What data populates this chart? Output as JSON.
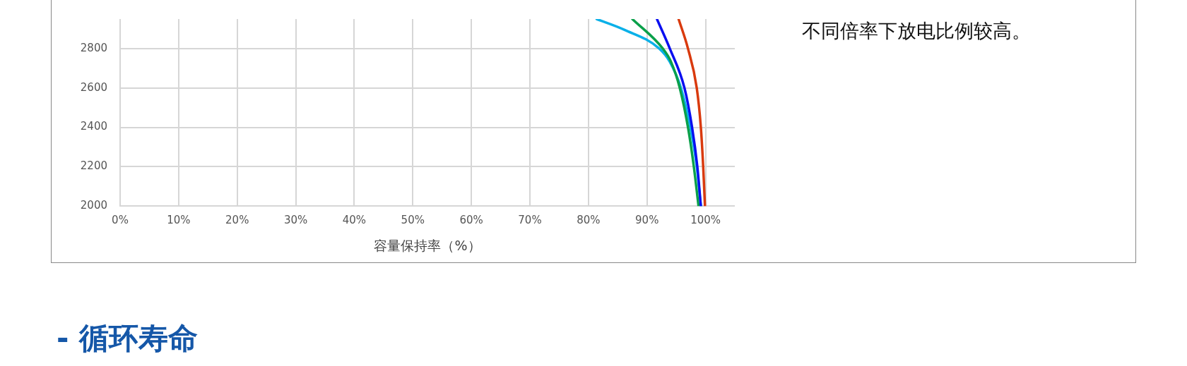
{
  "chart_data": {
    "type": "line",
    "xlabel": "容量保持率（%）",
    "xlim": [
      0,
      105
    ],
    "ylim": [
      2000,
      2950
    ],
    "xticks": [
      {
        "value": 0,
        "label": "0%"
      },
      {
        "value": 10,
        "label": "10%"
      },
      {
        "value": 20,
        "label": "20%"
      },
      {
        "value": 30,
        "label": "30%"
      },
      {
        "value": 40,
        "label": "40%"
      },
      {
        "value": 50,
        "label": "50%"
      },
      {
        "value": 60,
        "label": "60%"
      },
      {
        "value": 70,
        "label": "70%"
      },
      {
        "value": 80,
        "label": "80%"
      },
      {
        "value": 90,
        "label": "90%"
      },
      {
        "value": 100,
        "label": "100%"
      }
    ],
    "yticks": [
      2000,
      2200,
      2400,
      2600,
      2800
    ],
    "series": [
      {
        "color": "#d93a0e",
        "x": [
          95.4,
          97.0,
          98.5,
          99.2,
          99.6,
          99.9
        ],
        "values": [
          2950,
          2800,
          2600,
          2400,
          2200,
          2000
        ]
      },
      {
        "color": "#0a0ff0",
        "x": [
          91.7,
          93.9,
          96.4,
          97.7,
          98.6,
          99.2
        ],
        "values": [
          2950,
          2800,
          2600,
          2400,
          2200,
          2000
        ]
      },
      {
        "color": "#0aa04a",
        "x": [
          87.5,
          92.7,
          94.1,
          95.6,
          97.0,
          98.0,
          98.8
        ],
        "values": [
          2950,
          2800,
          2733,
          2600,
          2400,
          2200,
          2000
        ]
      },
      {
        "color": "#0ab0e8",
        "x": [
          81.4,
          86.1,
          92.1,
          93.9,
          95.8,
          97.4,
          98.5,
          99.2
        ],
        "values": [
          2950,
          2896,
          2800,
          2733,
          2600,
          2400,
          2200,
          2000
        ]
      }
    ],
    "grid": true,
    "legend": false,
    "marker": "none",
    "line_style": "solid",
    "annotations": [
      "不同倍率下放电比例较高。",
      "- 循环寿命"
    ]
  }
}
